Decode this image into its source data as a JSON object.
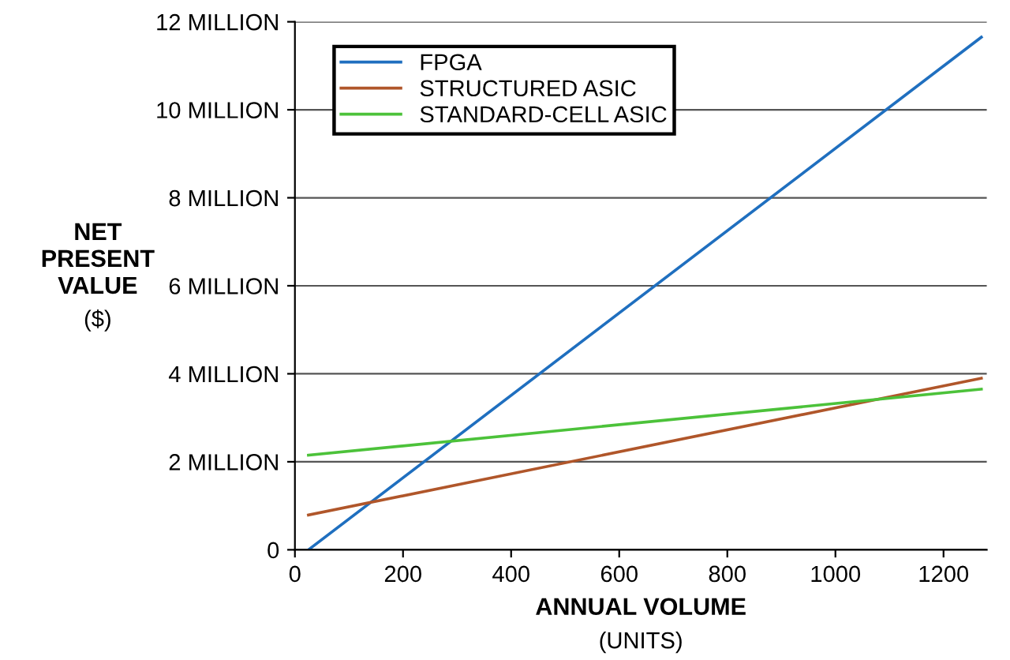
{
  "chart_data": {
    "type": "line",
    "xlabel": "ANNUAL VOLUME\n(UNITS)",
    "ylabel": "NET\nPRESENT\nVALUE\n($)",
    "xlim": [
      0,
      1280
    ],
    "xticks": [
      0,
      200,
      400,
      600,
      800,
      1000,
      1200
    ],
    "ylim": [
      0,
      12
    ],
    "yticks": [
      0,
      {
        "value": 2,
        "label": "2 MILLION"
      },
      {
        "value": 4,
        "label": "4 MILLION"
      },
      {
        "value": 6,
        "label": "6 MILLION"
      },
      {
        "value": 8,
        "label": "8 MILLION"
      },
      {
        "value": 10,
        "label": "10 MILLION"
      },
      {
        "value": 12,
        "label": "12 MILLION"
      }
    ],
    "grid": "y",
    "legend": "top left",
    "marker": "none",
    "line_style": "solid",
    "x": [
      25,
      1270
    ],
    "series": [
      {
        "name": "FPGA",
        "color": "#1f6fbf",
        "values": [
          0,
          11.65
        ]
      },
      {
        "name": "STRUCTURED ASIC",
        "color": "#b0562a",
        "values": [
          0.79,
          3.9
        ]
      },
      {
        "name": "STANDARD-CELL ASIC",
        "color": "#4cc23a",
        "values": [
          2.15,
          3.65
        ]
      }
    ]
  }
}
